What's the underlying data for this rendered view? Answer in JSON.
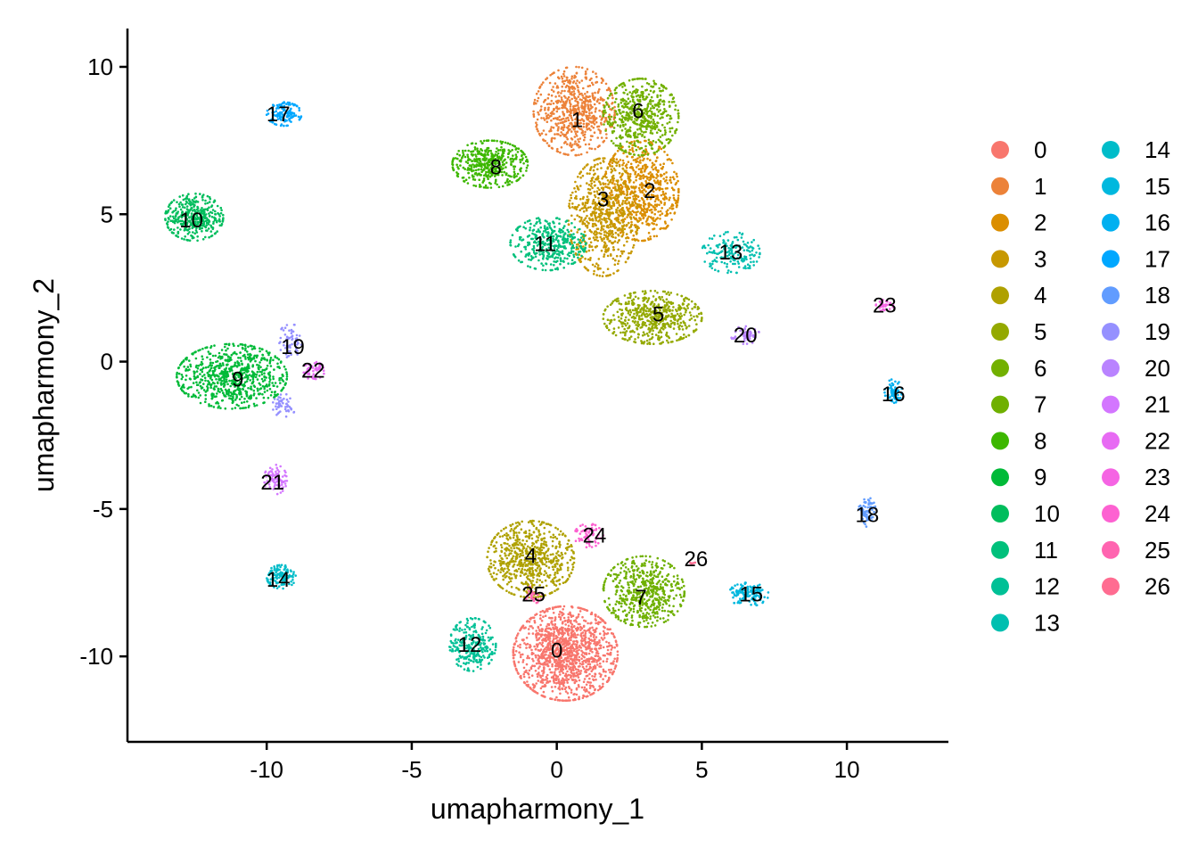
{
  "chart_data": {
    "type": "scatter",
    "xlabel": "umapharmony_1",
    "ylabel": "umapharmony_2",
    "xlim": [
      -14.8,
      13.5
    ],
    "ylim": [
      -12.9,
      11.3
    ],
    "x_ticks": [
      -10,
      -5,
      0,
      5,
      10
    ],
    "y_ticks": [
      -10,
      -5,
      0,
      5,
      10
    ],
    "grid": false,
    "legend_position": "right",
    "legend_columns": 2,
    "clusters": [
      {
        "name": "0",
        "color": "#F8766D",
        "label": {
          "x": 0.0,
          "y": -9.8
        },
        "blobs": [
          {
            "cx": 0.3,
            "cy": -9.9,
            "rx": 1.8,
            "ry": 1.6,
            "n": 1300
          }
        ]
      },
      {
        "name": "1",
        "color": "#EC8239",
        "label": {
          "x": 0.7,
          "y": 8.2
        },
        "blobs": [
          {
            "cx": 0.6,
            "cy": 8.5,
            "rx": 1.4,
            "ry": 1.5,
            "n": 650
          }
        ]
      },
      {
        "name": "2",
        "color": "#DB8E00",
        "label": {
          "x": 3.2,
          "y": 5.8
        },
        "blobs": [
          {
            "cx": 2.9,
            "cy": 5.8,
            "rx": 1.3,
            "ry": 1.7,
            "n": 650
          }
        ]
      },
      {
        "name": "3",
        "color": "#C79800",
        "label": {
          "x": 1.6,
          "y": 5.5
        },
        "blobs": [
          {
            "cx": 1.6,
            "cy": 4.9,
            "rx": 1.2,
            "ry": 2.0,
            "n": 650
          }
        ]
      },
      {
        "name": "4",
        "color": "#AFA100",
        "label": {
          "x": -0.9,
          "y": -6.6
        },
        "blobs": [
          {
            "cx": -0.9,
            "cy": -6.7,
            "rx": 1.5,
            "ry": 1.3,
            "n": 650
          }
        ]
      },
      {
        "name": "5",
        "color": "#94A900",
        "label": {
          "x": 3.5,
          "y": 1.6
        },
        "blobs": [
          {
            "cx": 3.3,
            "cy": 1.5,
            "rx": 1.7,
            "ry": 0.9,
            "n": 550
          }
        ]
      },
      {
        "name": "6",
        "color": "#72B000",
        "label": {
          "x": 2.8,
          "y": 8.5
        },
        "blobs": [
          {
            "cx": 2.9,
            "cy": 8.3,
            "rx": 1.3,
            "ry": 1.3,
            "n": 550
          }
        ]
      },
      {
        "name": "7",
        "color": "#6FB000",
        "label": {
          "x": 2.9,
          "y": -8.0
        },
        "blobs": [
          {
            "cx": 3.0,
            "cy": -7.8,
            "rx": 1.4,
            "ry": 1.2,
            "n": 550
          }
        ]
      },
      {
        "name": "8",
        "color": "#3DB700",
        "label": {
          "x": -2.1,
          "y": 6.6
        },
        "blobs": [
          {
            "cx": -2.3,
            "cy": 6.7,
            "rx": 1.3,
            "ry": 0.8,
            "n": 450
          }
        ]
      },
      {
        "name": "9",
        "color": "#00BA38",
        "label": {
          "x": -11.0,
          "y": -0.6
        },
        "blobs": [
          {
            "cx": -11.2,
            "cy": -0.5,
            "rx": 1.9,
            "ry": 1.1,
            "n": 750
          }
        ]
      },
      {
        "name": "10",
        "color": "#00BD5C",
        "label": {
          "x": -12.6,
          "y": 4.8
        },
        "blobs": [
          {
            "cx": -12.5,
            "cy": 4.9,
            "rx": 1.0,
            "ry": 0.8,
            "n": 380
          }
        ]
      },
      {
        "name": "11",
        "color": "#00C07B",
        "label": {
          "x": -0.4,
          "y": 4.0
        },
        "blobs": [
          {
            "cx": -0.3,
            "cy": 4.0,
            "rx": 1.3,
            "ry": 0.9,
            "n": 380
          }
        ]
      },
      {
        "name": "12",
        "color": "#00C096",
        "label": {
          "x": -3.0,
          "y": -9.6
        },
        "blobs": [
          {
            "cx": -2.9,
            "cy": -9.6,
            "rx": 0.8,
            "ry": 0.9,
            "n": 260
          }
        ]
      },
      {
        "name": "13",
        "color": "#00BFB0",
        "label": {
          "x": 6.0,
          "y": 3.7
        },
        "blobs": [
          {
            "cx": 6.0,
            "cy": 3.7,
            "rx": 1.0,
            "ry": 0.7,
            "n": 170
          }
        ]
      },
      {
        "name": "14",
        "color": "#00BCC9",
        "label": {
          "x": -9.6,
          "y": -7.4
        },
        "blobs": [
          {
            "cx": -9.5,
            "cy": -7.3,
            "rx": 0.5,
            "ry": 0.4,
            "n": 130
          }
        ]
      },
      {
        "name": "15",
        "color": "#00B8DE",
        "label": {
          "x": 6.7,
          "y": -7.9
        },
        "blobs": [
          {
            "cx": 6.6,
            "cy": -7.9,
            "rx": 0.7,
            "ry": 0.4,
            "n": 130
          }
        ]
      },
      {
        "name": "16",
        "color": "#00B0F0",
        "label": {
          "x": 11.6,
          "y": -1.1
        },
        "blobs": [
          {
            "cx": 11.6,
            "cy": -1.0,
            "rx": 0.3,
            "ry": 0.4,
            "n": 70
          }
        ]
      },
      {
        "name": "17",
        "color": "#00A7FF",
        "label": {
          "x": -9.6,
          "y": 8.4
        },
        "blobs": [
          {
            "cx": -9.4,
            "cy": 8.4,
            "rx": 0.6,
            "ry": 0.4,
            "n": 130
          }
        ]
      },
      {
        "name": "18",
        "color": "#619CFF",
        "label": {
          "x": 10.7,
          "y": -5.2
        },
        "blobs": [
          {
            "cx": 10.7,
            "cy": -5.1,
            "rx": 0.3,
            "ry": 0.5,
            "n": 70
          }
        ]
      },
      {
        "name": "19",
        "color": "#9590FF",
        "label": {
          "x": -9.1,
          "y": 0.5
        },
        "blobs": [
          {
            "cx": -9.2,
            "cy": 0.7,
            "rx": 0.4,
            "ry": 0.6,
            "n": 60
          },
          {
            "cx": -9.4,
            "cy": -1.5,
            "rx": 0.4,
            "ry": 0.4,
            "n": 50
          }
        ]
      },
      {
        "name": "20",
        "color": "#B983FF",
        "label": {
          "x": 6.5,
          "y": 0.9
        },
        "blobs": [
          {
            "cx": 6.5,
            "cy": 0.9,
            "rx": 0.5,
            "ry": 0.3,
            "n": 60
          }
        ]
      },
      {
        "name": "21",
        "color": "#D376FF",
        "label": {
          "x": -9.8,
          "y": -4.1
        },
        "blobs": [
          {
            "cx": -9.7,
            "cy": -4.0,
            "rx": 0.4,
            "ry": 0.5,
            "n": 80
          }
        ]
      },
      {
        "name": "22",
        "color": "#E76BF3",
        "label": {
          "x": -8.4,
          "y": -0.3
        },
        "blobs": [
          {
            "cx": -8.4,
            "cy": -0.3,
            "rx": 0.4,
            "ry": 0.3,
            "n": 50
          }
        ]
      },
      {
        "name": "23",
        "color": "#F564E3",
        "label": {
          "x": 11.3,
          "y": 1.9
        },
        "blobs": [
          {
            "cx": 11.3,
            "cy": 1.9,
            "rx": 0.3,
            "ry": 0.2,
            "n": 30
          }
        ]
      },
      {
        "name": "24",
        "color": "#FD61D1",
        "label": {
          "x": 1.3,
          "y": -5.9
        },
        "blobs": [
          {
            "cx": 1.1,
            "cy": -5.9,
            "rx": 0.5,
            "ry": 0.4,
            "n": 70
          }
        ]
      },
      {
        "name": "25",
        "color": "#FF64B0",
        "label": {
          "x": -0.8,
          "y": -7.9
        },
        "blobs": [
          {
            "cx": -0.8,
            "cy": -7.9,
            "rx": 0.3,
            "ry": 0.3,
            "n": 30
          }
        ]
      },
      {
        "name": "26",
        "color": "#FF6C91",
        "label": {
          "x": 4.8,
          "y": -6.7
        },
        "blobs": [
          {
            "cx": 4.7,
            "cy": -6.8,
            "rx": 0.1,
            "ry": 0.1,
            "n": 5
          }
        ]
      }
    ]
  }
}
